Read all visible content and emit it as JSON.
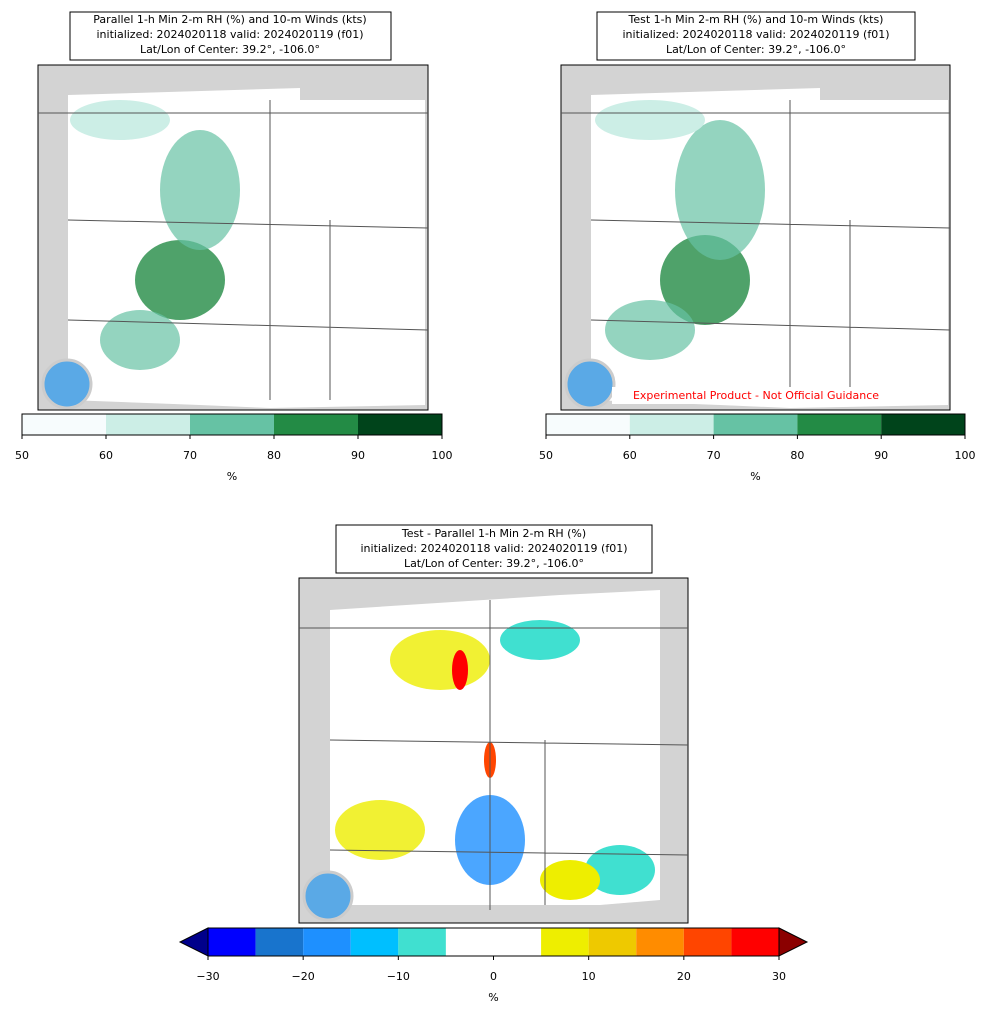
{
  "panels": [
    {
      "title_lines": [
        "Parallel 1-h Min 2-m RH (%) and 10-m Winds (kts)",
        "initialized: 2024020118 valid: 2024020119 (f01)",
        "Lat/Lon of Center: 39.2°, -106.0°"
      ],
      "colorbar": {
        "bounds": [
          50,
          60,
          70,
          80,
          90,
          100
        ],
        "colors": [
          "#f7fcfd",
          "#cceee6",
          "#66c2a4",
          "#238b45",
          "#00441b"
        ],
        "ticks": [
          50,
          60,
          70,
          80,
          90,
          100
        ],
        "label": "%"
      }
    },
    {
      "title_lines": [
        "Test 1-h Min 2-m RH (%) and 10-m Winds (kts)",
        "initialized: 2024020118 valid: 2024020119 (f01)",
        "Lat/Lon of Center: 39.2°, -106.0°"
      ],
      "colorbar": {
        "bounds": [
          50,
          60,
          70,
          80,
          90,
          100
        ],
        "colors": [
          "#f7fcfd",
          "#cceee6",
          "#66c2a4",
          "#238b45",
          "#00441b"
        ],
        "ticks": [
          50,
          60,
          70,
          80,
          90,
          100
        ],
        "label": "%"
      },
      "watermark": "Experimental Product - Not Official Guidance"
    },
    {
      "title_lines": [
        "Test - Parallel 1-h Min 2-m RH (%)",
        "initialized: 2024020118 valid: 2024020119 (f01)",
        "Lat/Lon of Center: 39.2°, -106.0°"
      ],
      "colorbar": {
        "bounds": [
          -30,
          -25,
          -20,
          -15,
          -10,
          -5,
          5,
          10,
          15,
          20,
          25,
          30
        ],
        "colors": [
          "#0000ff",
          "#1874cd",
          "#1e90ff",
          "#00bfff",
          "#40e0d0",
          "#ffffff",
          "#eeee00",
          "#eec900",
          "#ff8c00",
          "#ff4500",
          "#ff0000"
        ],
        "under_color": "#00008b",
        "over_color": "#8b0000",
        "ticks": [
          {
            "value": -30,
            "label": "−30"
          },
          {
            "value": -20,
            "label": "−20"
          },
          {
            "value": -10,
            "label": "−10"
          },
          0,
          10,
          20,
          30
        ],
        "label": "%"
      }
    }
  ]
}
